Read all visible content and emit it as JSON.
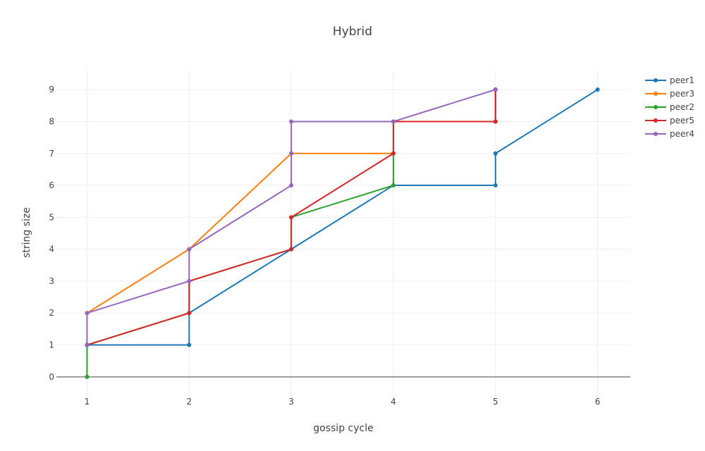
{
  "chart_data": {
    "type": "line",
    "title": "Hybrid",
    "xlabel": "gossip cycle",
    "ylabel": "string size",
    "x_ticks": [
      1,
      2,
      3,
      4,
      5,
      6
    ],
    "y_ticks": [
      0,
      1,
      2,
      3,
      4,
      5,
      6,
      7,
      8,
      9
    ],
    "xlim": [
      0.7,
      6.32
    ],
    "ylim": [
      -0.6,
      9.6
    ],
    "grid": true,
    "legend_position": "top-right",
    "series": [
      {
        "name": "peer1",
        "color": "#1f77b4",
        "points": [
          [
            1,
            1
          ],
          [
            2,
            1
          ],
          [
            2,
            2
          ],
          [
            3,
            4
          ],
          [
            4,
            6
          ],
          [
            5,
            6
          ],
          [
            5,
            7
          ],
          [
            6,
            9
          ]
        ]
      },
      {
        "name": "peer3",
        "color": "#ff7f0e",
        "points": [
          [
            1,
            2
          ],
          [
            2,
            4
          ],
          [
            3,
            7
          ],
          [
            4,
            7
          ],
          [
            4,
            8
          ],
          [
            5,
            8
          ],
          [
            5,
            9
          ]
        ]
      },
      {
        "name": "peer2",
        "color": "#2ca02c",
        "points": [
          [
            1,
            0
          ],
          [
            1,
            1
          ],
          [
            2,
            2
          ],
          [
            2,
            3
          ],
          [
            3,
            4
          ],
          [
            3,
            5
          ],
          [
            4,
            6
          ],
          [
            4,
            7
          ],
          [
            4,
            8
          ],
          [
            5,
            8
          ],
          [
            5,
            9
          ]
        ]
      },
      {
        "name": "peer5",
        "color": "#d62728",
        "points": [
          [
            1,
            1
          ],
          [
            2,
            2
          ],
          [
            2,
            3
          ],
          [
            3,
            4
          ],
          [
            3,
            5
          ],
          [
            4,
            7
          ],
          [
            4,
            8
          ],
          [
            5,
            8
          ],
          [
            5,
            9
          ]
        ]
      },
      {
        "name": "peer4",
        "color": "#9467bd",
        "points": [
          [
            1,
            1
          ],
          [
            1,
            2
          ],
          [
            2,
            3
          ],
          [
            2,
            4
          ],
          [
            3,
            6
          ],
          [
            3,
            7
          ],
          [
            3,
            8
          ],
          [
            4,
            8
          ],
          [
            5,
            9
          ]
        ]
      }
    ]
  }
}
